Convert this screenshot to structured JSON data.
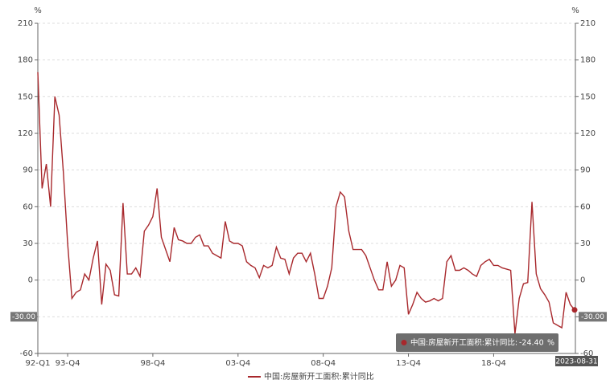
{
  "chart_data": {
    "type": "line",
    "y_unit": "%",
    "y2_unit": "%",
    "categories": [
      "92-Q1",
      null,
      null,
      null,
      null,
      null,
      null,
      "93-Q4",
      null,
      null,
      null,
      null,
      null,
      null,
      null,
      null,
      null,
      null,
      null,
      null,
      null,
      null,
      null,
      null,
      null,
      null,
      null,
      "98-Q4",
      null,
      null,
      null,
      null,
      null,
      null,
      null,
      null,
      null,
      null,
      null,
      null,
      null,
      null,
      null,
      null,
      null,
      null,
      null,
      "03-Q4",
      null,
      null,
      null,
      null,
      null,
      null,
      null,
      null,
      null,
      null,
      null,
      null,
      null,
      null,
      null,
      null,
      null,
      null,
      null,
      "08-Q4",
      null,
      null,
      null,
      null,
      null,
      null,
      null,
      null,
      null,
      null,
      null,
      null,
      null,
      null,
      null,
      null,
      null,
      null,
      null,
      "13-Q4",
      null,
      null,
      null,
      null,
      null,
      null,
      null,
      null,
      null,
      null,
      null,
      null,
      null,
      null,
      null,
      null,
      null,
      null,
      null,
      "18-Q4",
      null,
      null,
      null,
      null,
      null,
      null,
      null,
      null,
      null,
      null,
      null,
      null,
      null,
      null,
      null,
      null,
      null,
      null,
      "2023-08-31"
    ],
    "series": [
      {
        "name": "中国:房屋新开工面积:累计同比",
        "color": "#a8282c",
        "values": [
          170,
          75,
          95,
          60,
          150,
          135,
          88,
          30,
          -15,
          -10,
          -8,
          5,
          0,
          18,
          32,
          -20,
          13,
          8,
          -12,
          -13,
          63,
          5,
          5,
          10,
          3,
          40,
          45,
          52,
          75,
          35,
          25,
          15,
          43,
          33,
          32,
          30,
          30,
          35,
          37,
          28,
          28,
          22,
          20,
          18,
          48,
          32,
          30,
          30,
          28,
          15,
          12,
          10,
          2,
          12,
          10,
          12,
          27,
          18,
          17,
          5,
          18,
          22,
          22,
          15,
          22,
          5,
          -15,
          -15,
          -5,
          10,
          60,
          72,
          68,
          40,
          25,
          25,
          25,
          20,
          10,
          0,
          -8,
          -8,
          15,
          -5,
          0,
          12,
          10,
          -28,
          -20,
          -10,
          -15,
          -18,
          -17,
          -15,
          -17,
          -15,
          15,
          20,
          8,
          8,
          10,
          8,
          5,
          3,
          12,
          15,
          17,
          12,
          12,
          10,
          9,
          8,
          -44,
          -15,
          -3,
          -2,
          64,
          5,
          -7,
          -12,
          -18,
          -35,
          -37,
          -39,
          -10,
          -20,
          -24.4
        ]
      }
    ],
    "ylim": [
      -60,
      210
    ],
    "yticks": [
      -60,
      -30,
      0,
      30,
      60,
      90,
      120,
      150,
      180,
      210
    ],
    "y2lim": [
      -60,
      210
    ],
    "y2ticks": [
      -60,
      -30,
      0,
      30,
      60,
      90,
      120,
      150,
      180,
      210
    ],
    "grid": true,
    "crosshair_y": {
      "value": -30,
      "label": "-30.00"
    },
    "tooltip": {
      "label": "中国:房屋新开工面积:累计同比:",
      "value": -24.4,
      "value_label": "-24.40",
      "unit": "%"
    }
  }
}
